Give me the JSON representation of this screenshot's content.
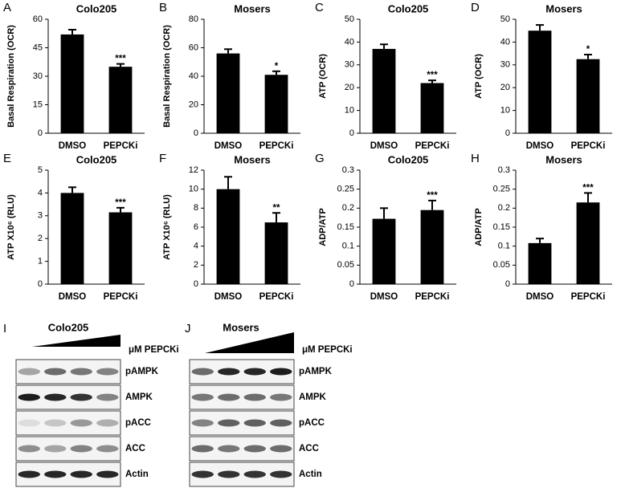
{
  "chart_data": [
    {
      "type": "bar",
      "panel_label": "A",
      "title": "Colo205",
      "ylabel": "Basal Respiration (OCR)",
      "categories": [
        "DMSO",
        "PEPCKi"
      ],
      "values": [
        52,
        35
      ],
      "errors": [
        2.5,
        1.5
      ],
      "color": "#000000",
      "ylim": [
        0,
        60
      ],
      "yticks": [
        0,
        15,
        30,
        45,
        60
      ],
      "annotation": "***",
      "grid": false
    },
    {
      "type": "bar",
      "panel_label": "B",
      "title": "Mosers",
      "ylabel": "Basal Respiration (OCR)",
      "categories": [
        "DMSO",
        "PEPCKi"
      ],
      "values": [
        56,
        41
      ],
      "errors": [
        3,
        2.5
      ],
      "color": "#000000",
      "ylim": [
        0,
        80
      ],
      "yticks": [
        0,
        20,
        40,
        60,
        80
      ],
      "annotation": "*",
      "grid": false
    },
    {
      "type": "bar",
      "panel_label": "C",
      "title": "Colo205",
      "ylabel": "ATP (OCR)",
      "categories": [
        "DMSO",
        "PEPCKi"
      ],
      "values": [
        37,
        22
      ],
      "errors": [
        2,
        1.2
      ],
      "color": "#000000",
      "ylim": [
        0,
        50
      ],
      "yticks": [
        0,
        10,
        20,
        30,
        40,
        50
      ],
      "annotation": "***",
      "grid": false
    },
    {
      "type": "bar",
      "panel_label": "D",
      "title": "Mosers",
      "ylabel": "ATP (OCR)",
      "categories": [
        "DMSO",
        "PEPCKi"
      ],
      "values": [
        45,
        32.5
      ],
      "errors": [
        2.5,
        2
      ],
      "color": "#000000",
      "ylim": [
        0,
        50
      ],
      "yticks": [
        0,
        10,
        20,
        30,
        40,
        50
      ],
      "annotation": "*",
      "grid": false
    },
    {
      "type": "bar",
      "panel_label": "E",
      "title": "Colo205",
      "ylabel": "ATP X10⁶ (RLU)",
      "categories": [
        "DMSO",
        "PEPCKi"
      ],
      "values": [
        4.0,
        3.15
      ],
      "errors": [
        0.25,
        0.2
      ],
      "color": "#000000",
      "ylim": [
        0,
        5
      ],
      "yticks": [
        0,
        1,
        2,
        3,
        4,
        5
      ],
      "annotation": "***",
      "grid": false
    },
    {
      "type": "bar",
      "panel_label": "F",
      "title": "Mosers",
      "ylabel": "ATP X10⁶ (RLU)",
      "categories": [
        "DMSO",
        "PEPCKi"
      ],
      "values": [
        10,
        6.5
      ],
      "errors": [
        1.3,
        1
      ],
      "color": "#000000",
      "ylim": [
        0,
        12
      ],
      "yticks": [
        0,
        2,
        4,
        6,
        8,
        10,
        12
      ],
      "annotation": "**",
      "grid": false
    },
    {
      "type": "bar",
      "panel_label": "G",
      "title": "Colo205",
      "ylabel": "ADP/ATP",
      "categories": [
        "DMSO",
        "PEPCKi"
      ],
      "values": [
        0.172,
        0.195
      ],
      "errors": [
        0.028,
        0.025
      ],
      "color": "#000000",
      "ylim": [
        0,
        0.3
      ],
      "yticks": [
        0,
        0.05,
        0.1,
        0.15,
        0.2,
        0.25,
        0.3
      ],
      "annotation": "***",
      "grid": false
    },
    {
      "type": "bar",
      "panel_label": "H",
      "title": "Mosers",
      "ylabel": "ADP/ATP",
      "categories": [
        "DMSO",
        "PEPCKi"
      ],
      "values": [
        0.108,
        0.215
      ],
      "errors": [
        0.012,
        0.025
      ],
      "color": "#000000",
      "ylim": [
        0,
        0.3
      ],
      "yticks": [
        0,
        0.05,
        0.1,
        0.15,
        0.2,
        0.25,
        0.3
      ],
      "annotation": "***",
      "grid": false
    }
  ],
  "blots": [
    {
      "panel_label": "I",
      "cell_line": "Colo205",
      "treatment": "μM PEPCKi",
      "rows": [
        "pAMPK",
        "AMPK",
        "pACC",
        "ACC",
        "Actin"
      ]
    },
    {
      "panel_label": "J",
      "cell_line": "Mosers",
      "treatment": "μM PEPCKi",
      "rows": [
        "pAMPK",
        "AMPK",
        "pACC",
        "ACC",
        "Actin"
      ]
    }
  ]
}
